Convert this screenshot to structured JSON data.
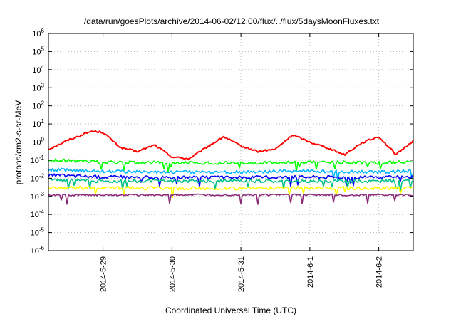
{
  "chart_data": {
    "type": "line",
    "title": "/data/run/goesPlots/archive/2014-06-02/12:00/flux/../flux/5daysMoonFluxes.txt",
    "xlabel": "Coordinated Universal Time (UTC)",
    "ylabel": "protons/cm2-s-sr-MeV",
    "yscale": "log",
    "ylim": [
      1e-06,
      1000000.0
    ],
    "xlim": [
      "2014-05-28 05:00",
      "2014-06-02 12:00"
    ],
    "grid": true,
    "legend": "none",
    "y_ticks": [
      {
        "base": "10",
        "exp": "-6"
      },
      {
        "base": "10",
        "exp": "-5"
      },
      {
        "base": "10",
        "exp": "-4"
      },
      {
        "base": "10",
        "exp": "-3"
      },
      {
        "base": "10",
        "exp": "-2"
      },
      {
        "base": "10",
        "exp": "-1"
      },
      {
        "base": "10",
        "exp": "0"
      },
      {
        "base": "10",
        "exp": "1"
      },
      {
        "base": "10",
        "exp": "2"
      },
      {
        "base": "10",
        "exp": "3"
      },
      {
        "base": "10",
        "exp": "4"
      },
      {
        "base": "10",
        "exp": "5"
      },
      {
        "base": "10",
        "exp": "6"
      }
    ],
    "x_ticks": [
      "2014-5-29",
      "2014-5-30",
      "2014-5-31",
      "2014-6-1",
      "2014-6-2"
    ],
    "series": [
      {
        "color": "#ff0000",
        "x": [
          "2014-05-28 05:00",
          "2014-05-28 12:00",
          "2014-05-28 20:00",
          "2014-05-29 00:00",
          "2014-05-29 06:00",
          "2014-05-29 12:00",
          "2014-05-29 18:00",
          "2014-05-30 00:00",
          "2014-05-30 06:00",
          "2014-05-30 12:00",
          "2014-05-30 18:00",
          "2014-05-31 00:00",
          "2014-05-31 06:00",
          "2014-05-31 12:00",
          "2014-05-31 18:00",
          "2014-06-01 00:00",
          "2014-06-01 06:00",
          "2014-06-01 12:00",
          "2014-06-01 18:00",
          "2014-06-02 00:00",
          "2014-06-02 06:00",
          "2014-06-02 12:00"
        ],
        "values": [
          0.4,
          1.3,
          4.0,
          3.5,
          0.5,
          0.3,
          0.7,
          0.15,
          0.12,
          0.5,
          2.0,
          0.6,
          0.3,
          0.4,
          2.5,
          1.0,
          0.5,
          0.2,
          0.9,
          2.0,
          0.2,
          1.2
        ]
      },
      {
        "color": "#00ff00",
        "x": [
          "2014-05-28 05:00",
          "2014-05-29 00:00",
          "2014-05-30 00:00",
          "2014-05-31 00:00",
          "2014-06-01 00:00",
          "2014-06-02 00:00",
          "2014-06-02 12:00"
        ],
        "values": [
          0.1,
          0.08,
          0.07,
          0.07,
          0.08,
          0.07,
          0.08
        ]
      },
      {
        "color": "#00b4ff",
        "x": [
          "2014-05-28 05:00",
          "2014-05-29 00:00",
          "2014-05-30 00:00",
          "2014-05-31 00:00",
          "2014-06-01 00:00",
          "2014-06-02 00:00",
          "2014-06-02 12:00"
        ],
        "values": [
          0.03,
          0.025,
          0.022,
          0.022,
          0.025,
          0.022,
          0.025
        ]
      },
      {
        "color": "#0000ff",
        "x": [
          "2014-05-28 05:00",
          "2014-05-29 00:00",
          "2014-05-30 00:00",
          "2014-05-31 00:00",
          "2014-06-01 00:00",
          "2014-06-02 00:00",
          "2014-06-02 12:00"
        ],
        "values": [
          0.015,
          0.012,
          0.011,
          0.011,
          0.012,
          0.011,
          0.012
        ]
      },
      {
        "color": "#00c08a",
        "x": [
          "2014-05-28 05:00",
          "2014-05-29 00:00",
          "2014-05-30 00:00",
          "2014-05-31 00:00",
          "2014-06-01 00:00",
          "2014-06-02 00:00",
          "2014-06-02 12:00"
        ],
        "values": [
          0.008,
          0.007,
          0.007,
          0.007,
          0.007,
          0.007,
          0.007
        ]
      },
      {
        "color": "#ffff00",
        "x": [
          "2014-05-28 05:00",
          "2014-05-29 00:00",
          "2014-05-30 00:00",
          "2014-05-31 00:00",
          "2014-06-01 00:00",
          "2014-06-02 00:00",
          "2014-06-02 12:00"
        ],
        "values": [
          0.003,
          0.003,
          0.0028,
          0.0028,
          0.003,
          0.0028,
          0.003
        ]
      },
      {
        "color": "#8b2a7a",
        "x": [
          "2014-05-28 05:00",
          "2014-05-29 00:00",
          "2014-05-30 00:00",
          "2014-05-31 00:00",
          "2014-06-01 00:00",
          "2014-06-02 00:00",
          "2014-06-02 12:00"
        ],
        "values": [
          0.0012,
          0.0012,
          0.0012,
          0.0012,
          0.0012,
          0.0012,
          0.0012
        ]
      }
    ]
  }
}
